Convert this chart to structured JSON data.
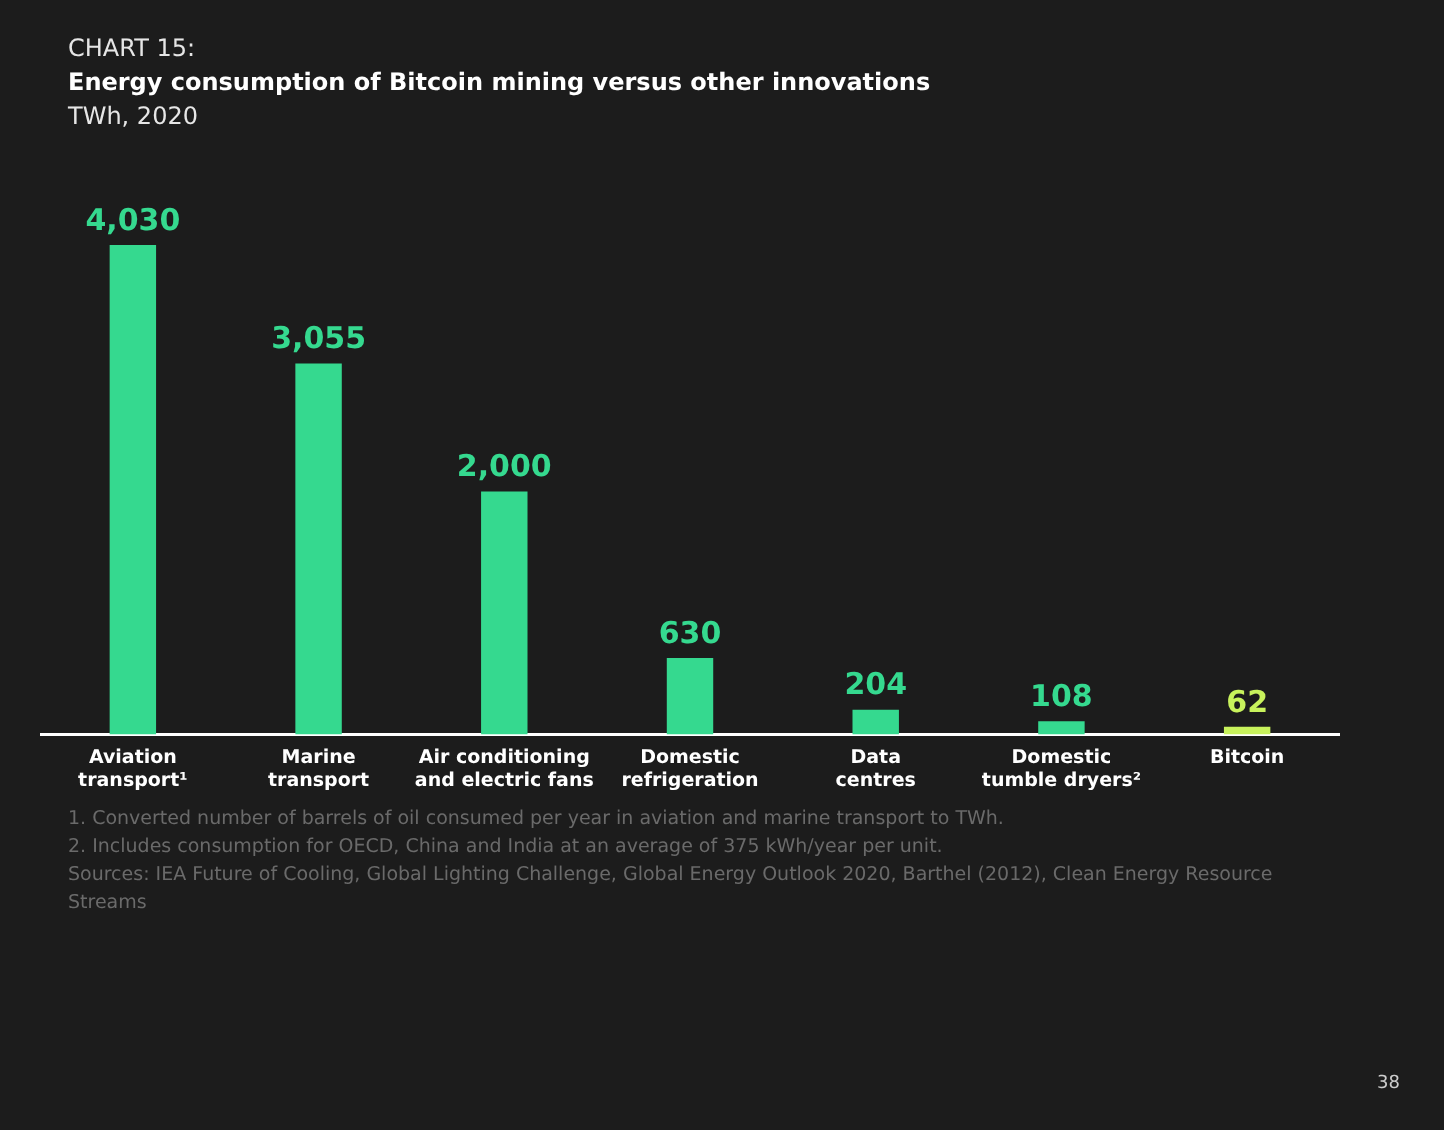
{
  "chart_data": {
    "type": "bar",
    "title": "Energy consumption of Bitcoin mining versus other innovations",
    "subtitle": "TWh, 2020",
    "categories": [
      "Aviation transport¹",
      "Marine transport",
      "Air conditioning and electric fans",
      "Domestic refrigeration",
      "Data centres",
      "Domestic tumble dryers²",
      "Bitcoin"
    ],
    "values": [
      4030,
      3055,
      2000,
      630,
      204,
      108,
      62
    ],
    "colors": [
      "#35d98f",
      "#35d98f",
      "#35d98f",
      "#35d98f",
      "#35d98f",
      "#35d98f",
      "#c8f25c"
    ],
    "value_labels": [
      "4,030",
      "3,055",
      "2,000",
      "630",
      "204",
      "108",
      "62"
    ],
    "annotations": [
      "CHART 15:",
      "1.    Converted number of barrels of oil consumed per year in aviation and marine transport to TWh.",
      "2.    Includes consumption for OECD, China and India at an average of 375 kWh/year per unit.",
      "Sources: IEA Future of Cooling, Global Lighting Challenge, Global Energy Outlook 2020, Barthel (2012), Clean Energy Resource Streams",
      "38"
    ]
  }
}
